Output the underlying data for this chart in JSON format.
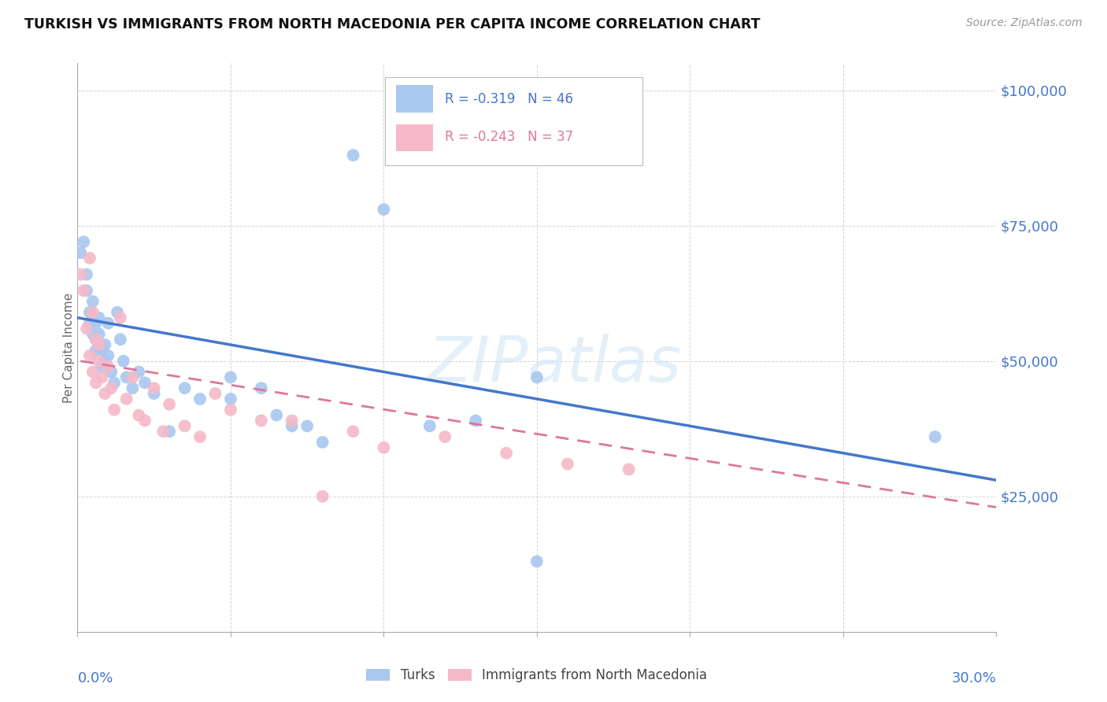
{
  "title": "TURKISH VS IMMIGRANTS FROM NORTH MACEDONIA PER CAPITA INCOME CORRELATION CHART",
  "source": "Source: ZipAtlas.com",
  "ylabel": "Per Capita Income",
  "yticks": [
    0,
    25000,
    50000,
    75000,
    100000
  ],
  "ytick_labels": [
    "",
    "$25,000",
    "$50,000",
    "$75,000",
    "$100,000"
  ],
  "xlim": [
    0.0,
    0.3
  ],
  "ylim": [
    0,
    105000
  ],
  "watermark": "ZIPatlas",
  "legend_r1": "-0.319",
  "legend_n1": "46",
  "legend_r2": "-0.243",
  "legend_n2": "37",
  "blue_color": "#a8c8f0",
  "pink_color": "#f5b8c8",
  "blue_line_color": "#4477cc",
  "pink_line_color": "#dd7799",
  "axis_label_color": "#4477cc",
  "turks_label": "Turks",
  "macedonia_label": "Immigrants from North Macedonia",
  "turks_x": [
    0.001,
    0.002,
    0.003,
    0.003,
    0.004,
    0.004,
    0.005,
    0.005,
    0.006,
    0.006,
    0.006,
    0.007,
    0.007,
    0.008,
    0.008,
    0.009,
    0.009,
    0.01,
    0.01,
    0.011,
    0.012,
    0.013,
    0.014,
    0.015,
    0.016,
    0.018,
    0.02,
    0.022,
    0.025,
    0.03,
    0.035,
    0.04,
    0.05,
    0.06,
    0.07,
    0.08,
    0.09,
    0.1,
    0.13,
    0.15,
    0.05,
    0.065,
    0.075,
    0.115,
    0.28,
    0.15
  ],
  "turks_y": [
    70000,
    72000,
    66000,
    63000,
    59000,
    57000,
    61000,
    55000,
    57000,
    54000,
    52000,
    58000,
    55000,
    52000,
    49000,
    53000,
    50000,
    57000,
    51000,
    48000,
    46000,
    59000,
    54000,
    50000,
    47000,
    45000,
    48000,
    46000,
    44000,
    37000,
    45000,
    43000,
    47000,
    45000,
    38000,
    35000,
    88000,
    78000,
    39000,
    13000,
    43000,
    40000,
    38000,
    38000,
    36000,
    47000
  ],
  "macedonia_x": [
    0.001,
    0.002,
    0.003,
    0.004,
    0.004,
    0.005,
    0.005,
    0.006,
    0.006,
    0.007,
    0.007,
    0.008,
    0.009,
    0.01,
    0.011,
    0.012,
    0.014,
    0.016,
    0.018,
    0.02,
    0.022,
    0.025,
    0.028,
    0.03,
    0.035,
    0.04,
    0.045,
    0.05,
    0.06,
    0.07,
    0.08,
    0.09,
    0.1,
    0.12,
    0.14,
    0.16,
    0.18
  ],
  "macedonia_y": [
    66000,
    63000,
    56000,
    69000,
    51000,
    59000,
    48000,
    54000,
    46000,
    50000,
    53000,
    47000,
    44000,
    49000,
    45000,
    41000,
    58000,
    43000,
    47000,
    40000,
    39000,
    45000,
    37000,
    42000,
    38000,
    36000,
    44000,
    41000,
    39000,
    39000,
    25000,
    37000,
    34000,
    36000,
    33000,
    31000,
    30000
  ],
  "blue_trendline_x": [
    0.0,
    0.3
  ],
  "blue_trendline_y": [
    58000,
    28000
  ],
  "pink_trendline_x": [
    0.001,
    0.3
  ],
  "pink_trendline_y": [
    50000,
    23000
  ],
  "background_color": "#ffffff",
  "grid_color": "#cccccc"
}
